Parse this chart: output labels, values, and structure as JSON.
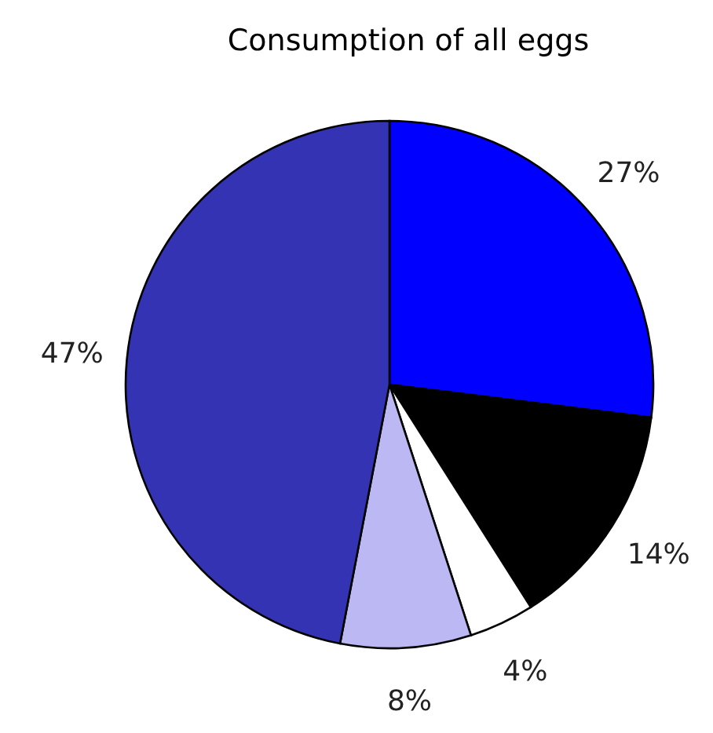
{
  "chart_data": {
    "type": "pie",
    "title": "Consumption of all eggs",
    "categories": [
      null,
      null,
      null,
      null,
      null
    ],
    "values": [
      27,
      14,
      4,
      8,
      47
    ],
    "value_labels": [
      "27%",
      "14%",
      "4%",
      "8%",
      "47%"
    ],
    "colors": [
      "#0000ff",
      "#000000",
      "#ffffff",
      "#bbb8f4",
      "#3333b3"
    ],
    "legend": false
  }
}
